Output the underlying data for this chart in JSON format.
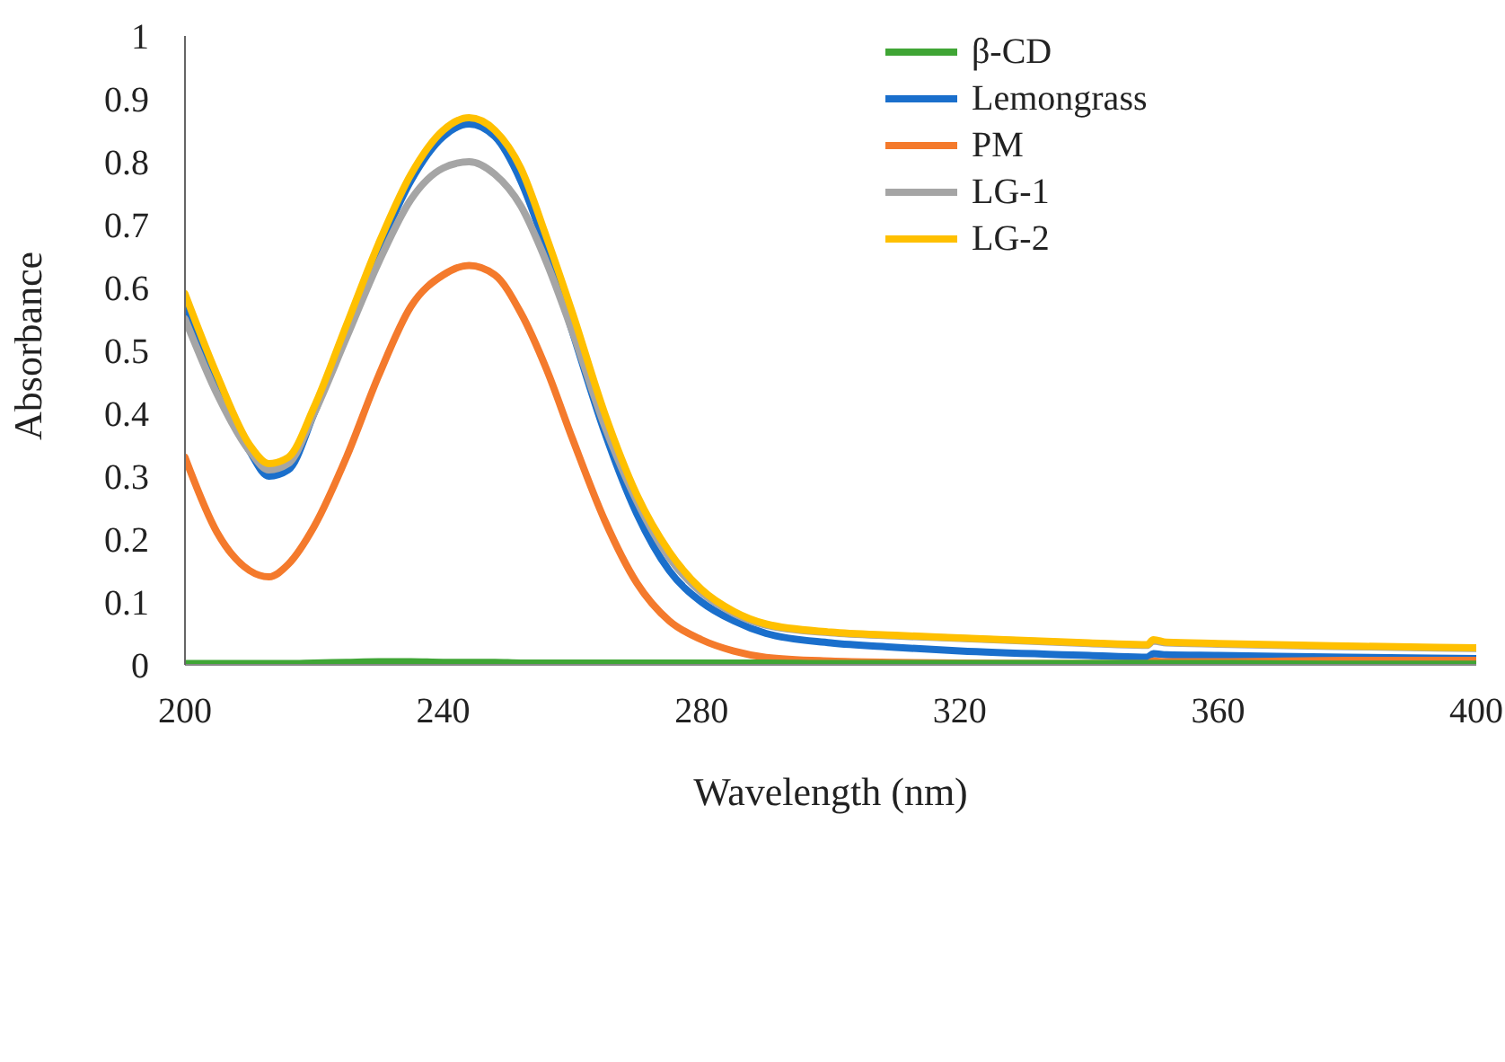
{
  "chart_data": {
    "type": "line",
    "xlabel": "Wavelength (nm)",
    "ylabel": "Absorbance",
    "x": [
      200,
      205,
      210,
      213,
      216,
      220,
      225,
      230,
      235,
      240,
      244,
      248,
      252,
      256,
      260,
      265,
      270,
      275,
      280,
      285,
      290,
      300,
      310,
      320,
      340,
      349,
      350,
      352,
      360,
      380,
      400
    ],
    "series": [
      {
        "name": "β-CD",
        "color": "#3fa535",
        "values": [
          0.002,
          0.002,
          0.002,
          0.002,
          0.002,
          0.003,
          0.004,
          0.005,
          0.005,
          0.004,
          0.004,
          0.004,
          0.003,
          0.003,
          0.003,
          0.003,
          0.003,
          0.003,
          0.003,
          0.003,
          0.003,
          0.002,
          0.002,
          0.002,
          0.002,
          0.002,
          0.002,
          0.002,
          0.002,
          0.001,
          0.001
        ]
      },
      {
        "name": "Lemongrass",
        "color": "#1a6fcc",
        "values": [
          0.57,
          0.45,
          0.34,
          0.3,
          0.31,
          0.4,
          0.53,
          0.66,
          0.77,
          0.84,
          0.86,
          0.84,
          0.77,
          0.66,
          0.53,
          0.37,
          0.24,
          0.15,
          0.1,
          0.07,
          0.05,
          0.035,
          0.028,
          0.022,
          0.015,
          0.012,
          0.018,
          0.016,
          0.015,
          0.012,
          0.01
        ]
      },
      {
        "name": "PM",
        "color": "#f47a2c",
        "values": [
          0.33,
          0.21,
          0.15,
          0.14,
          0.16,
          0.22,
          0.33,
          0.46,
          0.57,
          0.62,
          0.635,
          0.62,
          0.56,
          0.47,
          0.36,
          0.23,
          0.13,
          0.07,
          0.04,
          0.022,
          0.012,
          0.006,
          0.004,
          0.003,
          0.002,
          0.002,
          0.006,
          0.005,
          0.005,
          0.007,
          0.007
        ]
      },
      {
        "name": "LG-1",
        "color": "#a5a5a5",
        "values": [
          0.55,
          0.43,
          0.34,
          0.31,
          0.32,
          0.4,
          0.52,
          0.64,
          0.74,
          0.79,
          0.8,
          0.78,
          0.73,
          0.64,
          0.53,
          0.38,
          0.26,
          0.17,
          0.115,
          0.082,
          0.063,
          0.051,
          0.046,
          0.042,
          0.034,
          0.031,
          0.038,
          0.035,
          0.033,
          0.029,
          0.026
        ]
      },
      {
        "name": "LG-2",
        "color": "#ffc000",
        "values": [
          0.59,
          0.46,
          0.35,
          0.32,
          0.33,
          0.41,
          0.54,
          0.67,
          0.78,
          0.85,
          0.87,
          0.85,
          0.79,
          0.68,
          0.56,
          0.4,
          0.27,
          0.18,
          0.12,
          0.085,
          0.065,
          0.052,
          0.047,
          0.043,
          0.035,
          0.032,
          0.04,
          0.036,
          0.034,
          0.03,
          0.027
        ]
      }
    ],
    "xlim": [
      200,
      400
    ],
    "xticks": [
      200,
      240,
      280,
      320,
      360,
      400
    ],
    "ylim": [
      0,
      1
    ],
    "yticks": [
      0,
      0.1,
      0.2,
      0.3,
      0.4,
      0.5,
      0.6,
      0.7,
      0.8,
      0.9,
      1
    ],
    "grid": false,
    "legend": "top right",
    "marker": "none",
    "line_style": "solid"
  }
}
